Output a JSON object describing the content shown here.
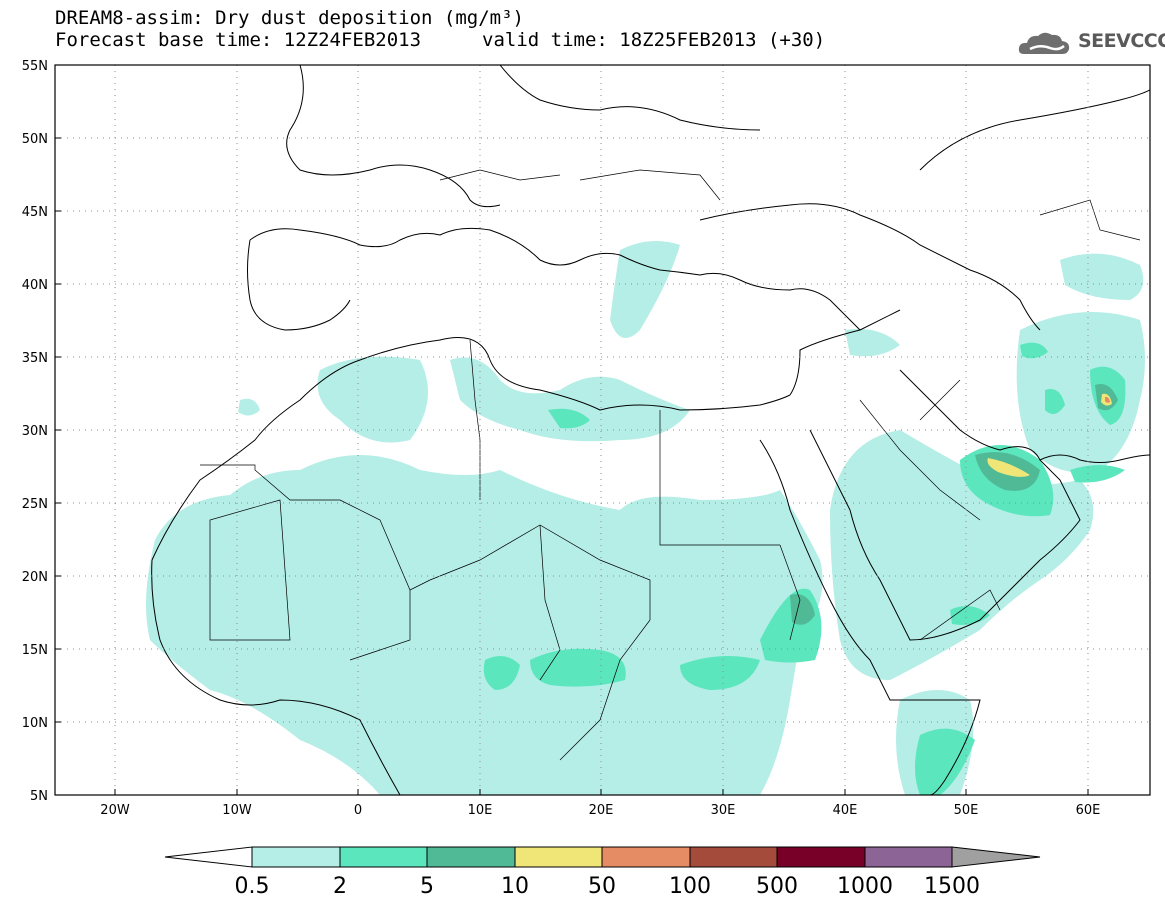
{
  "header": {
    "title": "DREAM8-assim: Dry dust deposition (mg/m³)",
    "base_time": "Forecast base time: 12Z24FEB2013",
    "valid_time": "valid time: 18Z25FEB2013 (+30)",
    "logo_text": "SEEVCCC",
    "logo_icon": "cloud-icon"
  },
  "map": {
    "lat_labels": [
      "55N",
      "50N",
      "45N",
      "40N",
      "35N",
      "30N",
      "25N",
      "20N",
      "15N",
      "10N",
      "5N"
    ],
    "lon_labels": [
      "20W",
      "10W",
      "0",
      "10E",
      "20E",
      "30E",
      "40E",
      "50E",
      "60E"
    ],
    "frame_color": "#000000",
    "grid": "dotted"
  },
  "colorbar": {
    "labels": [
      "0.5",
      "2",
      "5",
      "10",
      "50",
      "100",
      "500",
      "1000",
      "1500"
    ],
    "colors": [
      "#ffffff",
      "#b4eee6",
      "#5ce6be",
      "#50b996",
      "#f0e678",
      "#e68c64",
      "#a54b3c",
      "#780028",
      "#8c6496",
      "#a0a0a0"
    ]
  },
  "fills": {
    "light": "#b4eee6",
    "medium": "#5ce6be",
    "dark": "#50b996",
    "yellow": "#f0e678",
    "orange": "#e68c64"
  }
}
